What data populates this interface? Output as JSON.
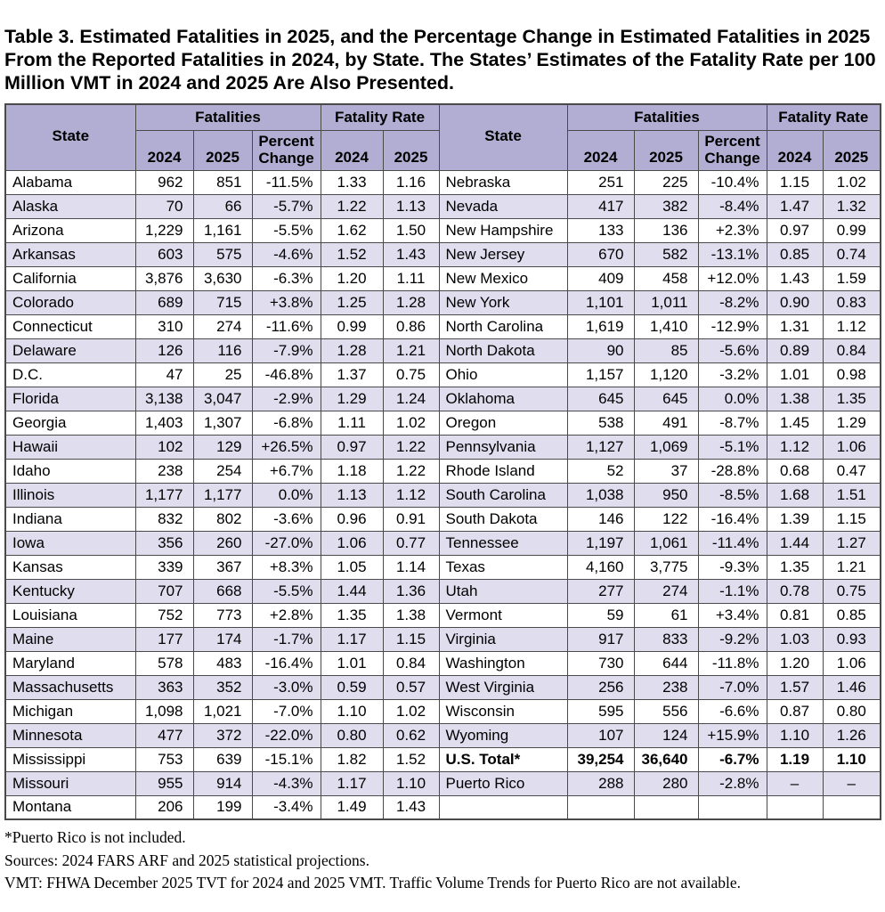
{
  "page_title": "Table 3. Estimated Fatalities in 2025, and the Percentage Change in Estimated Fatalities in 2025 From the Reported Fatalities in 2024, by State. The States’ Estimates of the Fatality Rate per 100 Million VMT in 2024 and 2025 Are Also Presented.",
  "colors": {
    "header_bg": "#b2aed3",
    "stripe_bg": "#dfddee",
    "border": "#4a4a4a"
  },
  "table": {
    "group_headers": {
      "fatalities": "Fatalities",
      "fatality_rate": "Fatality Rate"
    },
    "col_headers": {
      "state": "State",
      "y2024": "2024",
      "y2025": "2025",
      "percent_change": "Percent Change"
    },
    "left_rows": [
      {
        "state": "Alabama",
        "f2024": "962",
        "f2025": "851",
        "pct": "-11.5%",
        "r2024": "1.33",
        "r2025": "1.16"
      },
      {
        "state": "Alaska",
        "f2024": "70",
        "f2025": "66",
        "pct": "-5.7%",
        "r2024": "1.22",
        "r2025": "1.13"
      },
      {
        "state": "Arizona",
        "f2024": "1,229",
        "f2025": "1,161",
        "pct": "-5.5%",
        "r2024": "1.62",
        "r2025": "1.50"
      },
      {
        "state": "Arkansas",
        "f2024": "603",
        "f2025": "575",
        "pct": "-4.6%",
        "r2024": "1.52",
        "r2025": "1.43"
      },
      {
        "state": "California",
        "f2024": "3,876",
        "f2025": "3,630",
        "pct": "-6.3%",
        "r2024": "1.20",
        "r2025": "1.11"
      },
      {
        "state": "Colorado",
        "f2024": "689",
        "f2025": "715",
        "pct": "+3.8%",
        "r2024": "1.25",
        "r2025": "1.28"
      },
      {
        "state": "Connecticut",
        "f2024": "310",
        "f2025": "274",
        "pct": "-11.6%",
        "r2024": "0.99",
        "r2025": "0.86"
      },
      {
        "state": "Delaware",
        "f2024": "126",
        "f2025": "116",
        "pct": "-7.9%",
        "r2024": "1.28",
        "r2025": "1.21"
      },
      {
        "state": "D.C.",
        "f2024": "47",
        "f2025": "25",
        "pct": "-46.8%",
        "r2024": "1.37",
        "r2025": "0.75"
      },
      {
        "state": "Florida",
        "f2024": "3,138",
        "f2025": "3,047",
        "pct": "-2.9%",
        "r2024": "1.29",
        "r2025": "1.24"
      },
      {
        "state": "Georgia",
        "f2024": "1,403",
        "f2025": "1,307",
        "pct": "-6.8%",
        "r2024": "1.11",
        "r2025": "1.02"
      },
      {
        "state": "Hawaii",
        "f2024": "102",
        "f2025": "129",
        "pct": "+26.5%",
        "r2024": "0.97",
        "r2025": "1.22"
      },
      {
        "state": "Idaho",
        "f2024": "238",
        "f2025": "254",
        "pct": "+6.7%",
        "r2024": "1.18",
        "r2025": "1.22"
      },
      {
        "state": "Illinois",
        "f2024": "1,177",
        "f2025": "1,177",
        "pct": "0.0%",
        "r2024": "1.13",
        "r2025": "1.12"
      },
      {
        "state": "Indiana",
        "f2024": "832",
        "f2025": "802",
        "pct": "-3.6%",
        "r2024": "0.96",
        "r2025": "0.91"
      },
      {
        "state": "Iowa",
        "f2024": "356",
        "f2025": "260",
        "pct": "-27.0%",
        "r2024": "1.06",
        "r2025": "0.77"
      },
      {
        "state": "Kansas",
        "f2024": "339",
        "f2025": "367",
        "pct": "+8.3%",
        "r2024": "1.05",
        "r2025": "1.14"
      },
      {
        "state": "Kentucky",
        "f2024": "707",
        "f2025": "668",
        "pct": "-5.5%",
        "r2024": "1.44",
        "r2025": "1.36"
      },
      {
        "state": "Louisiana",
        "f2024": "752",
        "f2025": "773",
        "pct": "+2.8%",
        "r2024": "1.35",
        "r2025": "1.38"
      },
      {
        "state": "Maine",
        "f2024": "177",
        "f2025": "174",
        "pct": "-1.7%",
        "r2024": "1.17",
        "r2025": "1.15"
      },
      {
        "state": "Maryland",
        "f2024": "578",
        "f2025": "483",
        "pct": "-16.4%",
        "r2024": "1.01",
        "r2025": "0.84"
      },
      {
        "state": "Massachusetts",
        "f2024": "363",
        "f2025": "352",
        "pct": "-3.0%",
        "r2024": "0.59",
        "r2025": "0.57"
      },
      {
        "state": "Michigan",
        "f2024": "1,098",
        "f2025": "1,021",
        "pct": "-7.0%",
        "r2024": "1.10",
        "r2025": "1.02"
      },
      {
        "state": "Minnesota",
        "f2024": "477",
        "f2025": "372",
        "pct": "-22.0%",
        "r2024": "0.80",
        "r2025": "0.62"
      },
      {
        "state": "Mississippi",
        "f2024": "753",
        "f2025": "639",
        "pct": "-15.1%",
        "r2024": "1.82",
        "r2025": "1.52"
      },
      {
        "state": "Missouri",
        "f2024": "955",
        "f2025": "914",
        "pct": "-4.3%",
        "r2024": "1.17",
        "r2025": "1.10"
      },
      {
        "state": "Montana",
        "f2024": "206",
        "f2025": "199",
        "pct": "-3.4%",
        "r2024": "1.49",
        "r2025": "1.43"
      }
    ],
    "right_rows": [
      {
        "state": "Nebraska",
        "f2024": "251",
        "f2025": "225",
        "pct": "-10.4%",
        "r2024": "1.15",
        "r2025": "1.02"
      },
      {
        "state": "Nevada",
        "f2024": "417",
        "f2025": "382",
        "pct": "-8.4%",
        "r2024": "1.47",
        "r2025": "1.32"
      },
      {
        "state": "New Hampshire",
        "f2024": "133",
        "f2025": "136",
        "pct": "+2.3%",
        "r2024": "0.97",
        "r2025": "0.99"
      },
      {
        "state": "New Jersey",
        "f2024": "670",
        "f2025": "582",
        "pct": "-13.1%",
        "r2024": "0.85",
        "r2025": "0.74"
      },
      {
        "state": "New Mexico",
        "f2024": "409",
        "f2025": "458",
        "pct": "+12.0%",
        "r2024": "1.43",
        "r2025": "1.59"
      },
      {
        "state": "New York",
        "f2024": "1,101",
        "f2025": "1,011",
        "pct": "-8.2%",
        "r2024": "0.90",
        "r2025": "0.83"
      },
      {
        "state": "North Carolina",
        "f2024": "1,619",
        "f2025": "1,410",
        "pct": "-12.9%",
        "r2024": "1.31",
        "r2025": "1.12"
      },
      {
        "state": "North Dakota",
        "f2024": "90",
        "f2025": "85",
        "pct": "-5.6%",
        "r2024": "0.89",
        "r2025": "0.84"
      },
      {
        "state": "Ohio",
        "f2024": "1,157",
        "f2025": "1,120",
        "pct": "-3.2%",
        "r2024": "1.01",
        "r2025": "0.98"
      },
      {
        "state": "Oklahoma",
        "f2024": "645",
        "f2025": "645",
        "pct": "0.0%",
        "r2024": "1.38",
        "r2025": "1.35"
      },
      {
        "state": "Oregon",
        "f2024": "538",
        "f2025": "491",
        "pct": "-8.7%",
        "r2024": "1.45",
        "r2025": "1.29"
      },
      {
        "state": "Pennsylvania",
        "f2024": "1,127",
        "f2025": "1,069",
        "pct": "-5.1%",
        "r2024": "1.12",
        "r2025": "1.06"
      },
      {
        "state": "Rhode Island",
        "f2024": "52",
        "f2025": "37",
        "pct": "-28.8%",
        "r2024": "0.68",
        "r2025": "0.47"
      },
      {
        "state": "South Carolina",
        "f2024": "1,038",
        "f2025": "950",
        "pct": "-8.5%",
        "r2024": "1.68",
        "r2025": "1.51"
      },
      {
        "state": "South Dakota",
        "f2024": "146",
        "f2025": "122",
        "pct": "-16.4%",
        "r2024": "1.39",
        "r2025": "1.15"
      },
      {
        "state": "Tennessee",
        "f2024": "1,197",
        "f2025": "1,061",
        "pct": "-11.4%",
        "r2024": "1.44",
        "r2025": "1.27"
      },
      {
        "state": "Texas",
        "f2024": "4,160",
        "f2025": "3,775",
        "pct": "-9.3%",
        "r2024": "1.35",
        "r2025": "1.21"
      },
      {
        "state": "Utah",
        "f2024": "277",
        "f2025": "274",
        "pct": "-1.1%",
        "r2024": "0.78",
        "r2025": "0.75"
      },
      {
        "state": "Vermont",
        "f2024": "59",
        "f2025": "61",
        "pct": "+3.4%",
        "r2024": "0.81",
        "r2025": "0.85"
      },
      {
        "state": "Virginia",
        "f2024": "917",
        "f2025": "833",
        "pct": "-9.2%",
        "r2024": "1.03",
        "r2025": "0.93"
      },
      {
        "state": "Washington",
        "f2024": "730",
        "f2025": "644",
        "pct": "-11.8%",
        "r2024": "1.20",
        "r2025": "1.06"
      },
      {
        "state": "West Virginia",
        "f2024": "256",
        "f2025": "238",
        "pct": "-7.0%",
        "r2024": "1.57",
        "r2025": "1.46"
      },
      {
        "state": "Wisconsin",
        "f2024": "595",
        "f2025": "556",
        "pct": "-6.6%",
        "r2024": "0.87",
        "r2025": "0.80"
      },
      {
        "state": "Wyoming",
        "f2024": "107",
        "f2025": "124",
        "pct": "+15.9%",
        "r2024": "1.10",
        "r2025": "1.26"
      },
      {
        "state": "U.S. Total*",
        "f2024": "39,254",
        "f2025": "36,640",
        "pct": "-6.7%",
        "r2024": "1.19",
        "r2025": "1.10",
        "bold": true
      },
      {
        "state": "Puerto Rico",
        "f2024": "288",
        "f2025": "280",
        "pct": "-2.8%",
        "r2024": "–",
        "r2025": "–"
      },
      {
        "state": "",
        "f2024": "",
        "f2025": "",
        "pct": "",
        "r2024": "",
        "r2025": ""
      }
    ]
  },
  "footnotes": [
    "*Puerto Rico is not included.",
    "Sources: 2024 FARS ARF and 2025 statistical projections.",
    "VMT: FHWA December 2025 TVT for 2024 and 2025 VMT. Traffic Volume Trends for Puerto Rico are not available."
  ]
}
